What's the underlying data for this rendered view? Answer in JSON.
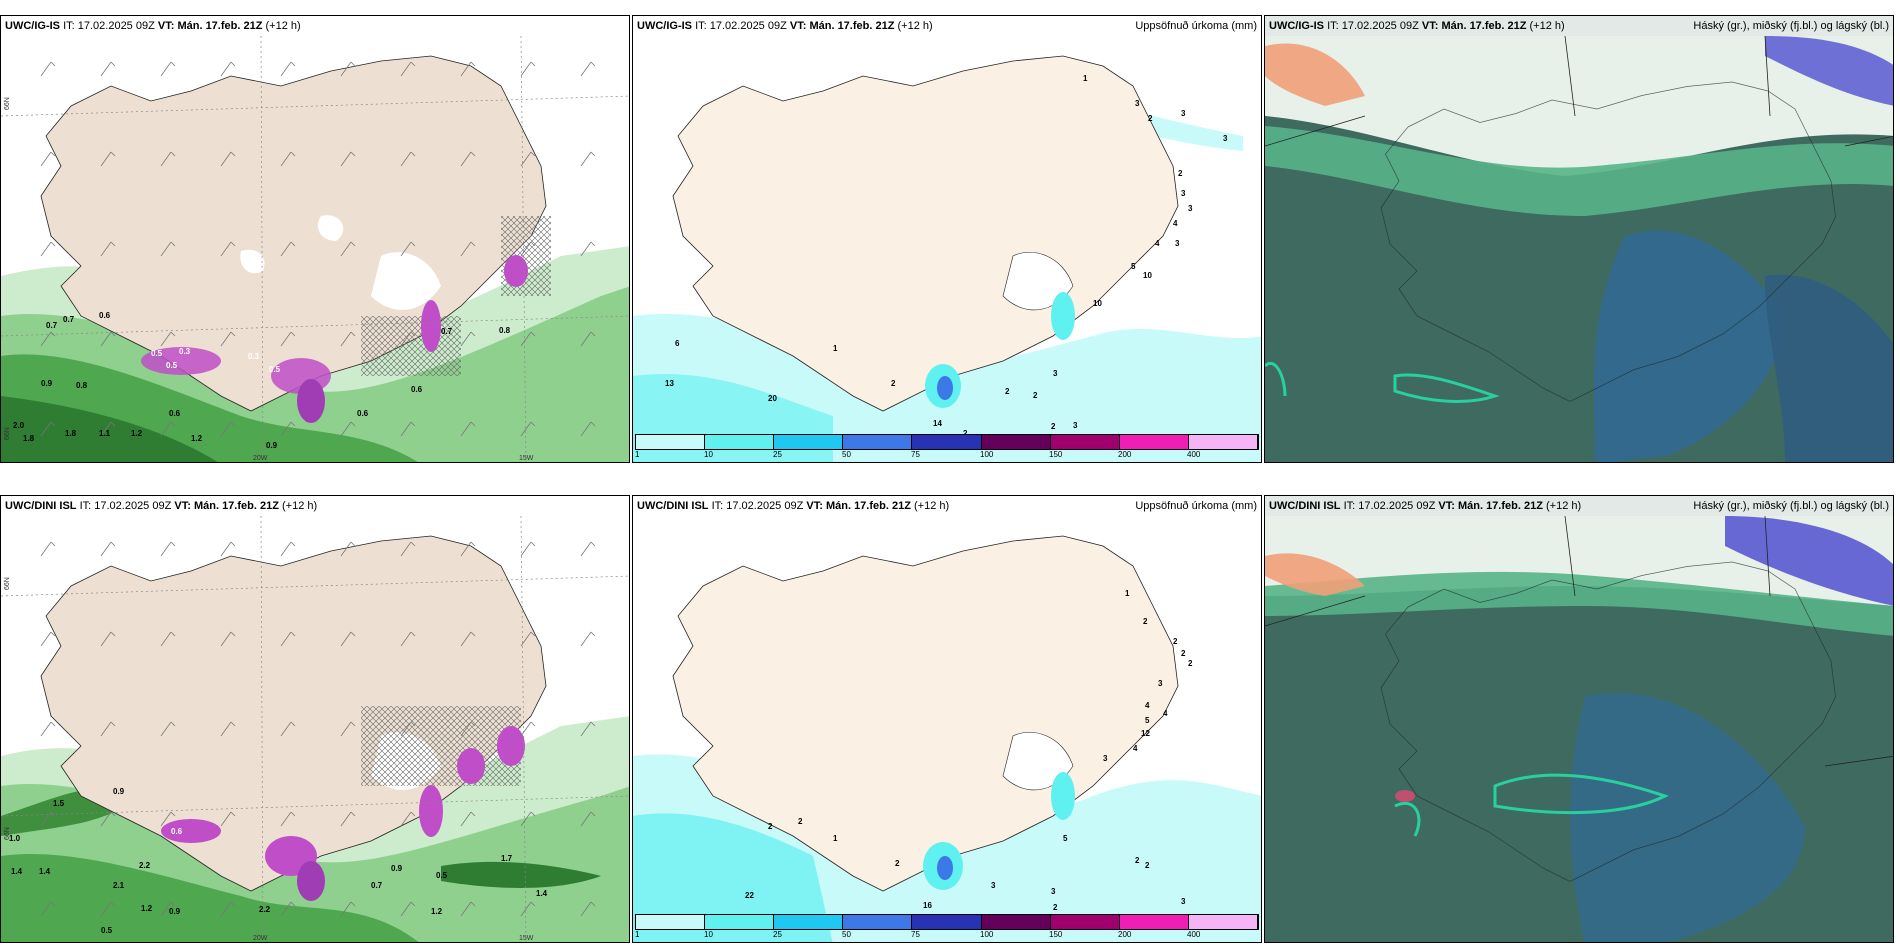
{
  "panels": [
    {
      "id": "p1",
      "model": "UWC/IG-IS",
      "it_label": "IT:",
      "it": "17.02.2025 09Z",
      "vt_label": "VT:",
      "vt": "Mán. 17.feb. 21Z",
      "lead": "(+12 h)",
      "product": ""
    },
    {
      "id": "p2",
      "model": "UWC/IG-IS",
      "it_label": "IT:",
      "it": "17.02.2025 09Z",
      "vt_label": "VT:",
      "vt": "Mán. 17.feb. 21Z",
      "lead": "(+12 h)",
      "product": "Uppsöfnuð úrkoma (mm)"
    },
    {
      "id": "p3",
      "model": "UWC/IG-IS",
      "it_label": "IT:",
      "it": "17.02.2025 09Z",
      "vt_label": "VT:",
      "vt": "Mán. 17.feb. 21Z",
      "lead": "(+12 h)",
      "product": "Háský (gr.), miðský (fj.bl.) og lágský (bl.)"
    },
    {
      "id": "p4",
      "model": "UWC/DINI ISL",
      "it_label": "IT:",
      "it": "17.02.2025 09Z",
      "vt_label": "VT:",
      "vt": "Mán. 17.feb. 21Z",
      "lead": "(+12 h)",
      "product": ""
    },
    {
      "id": "p5",
      "model": "UWC/DINI ISL",
      "it_label": "IT:",
      "it": "17.02.2025 09Z",
      "vt_label": "VT:",
      "vt": "Mán. 17.feb. 21Z",
      "lead": "(+12 h)",
      "product": "Uppsöfnuð úrkoma (mm)"
    },
    {
      "id": "p6",
      "model": "UWC/DINI ISL",
      "it_label": "IT:",
      "it": "17.02.2025 09Z",
      "vt_label": "VT:",
      "vt": "Mán. 17.feb. 21Z",
      "lead": "(+12 h)",
      "product": "Háský (gr.), miðský (fj.bl.) og lágský (bl.)"
    }
  ],
  "axis_labels": {
    "lat": "66N",
    "lon_a": "20W",
    "lon_b": "15W"
  },
  "legend": {
    "ticks": [
      "1",
      "10",
      "25",
      "50",
      "75",
      "100",
      "150",
      "200",
      "400"
    ],
    "colors": [
      "#c9fafa",
      "#5ff0f0",
      "#1ec8f0",
      "#3c78e6",
      "#2832b4",
      "#64005a",
      "#a0006e",
      "#f01eb4",
      "#f5b4f5"
    ]
  },
  "precip_labels_top": [
    "1",
    "3",
    "2",
    "3",
    "3",
    "2",
    "3",
    "3",
    "4",
    "4",
    "3",
    "5",
    "10",
    "10",
    "6",
    "13",
    "20",
    "1",
    "2",
    "14",
    "2",
    "3",
    "2",
    "2",
    "2",
    "3"
  ],
  "precip_labels_bottom": [
    "1",
    "2",
    "2",
    "2",
    "2",
    "3",
    "4",
    "4",
    "5",
    "4",
    "12",
    "3",
    "2",
    "2",
    "1",
    "2",
    "22",
    "16",
    "3",
    "3",
    "5",
    "2",
    "2",
    "2",
    "3"
  ],
  "wind_labels_top": [
    "0.7",
    "0.7",
    "0.6",
    "0.9",
    "0.8",
    "0.5",
    "0.3",
    "0.5",
    "0.3",
    "0.5",
    "0.6",
    "0.7",
    "0.6",
    "0.8",
    "2.0",
    "1.8",
    "1.8",
    "1.1",
    "1.2",
    "1.2",
    "0.6",
    "0.9"
  ],
  "wind_labels_bottom": [
    "1.5",
    "0.9",
    "1.0",
    "1.4",
    "1.4",
    "2.2",
    "2.1",
    "1.2",
    "0.9",
    "2.2",
    "0.5",
    "0.9",
    "0.7",
    "0.5",
    "1.2",
    "1.7",
    "1.4",
    "0.6"
  ]
}
